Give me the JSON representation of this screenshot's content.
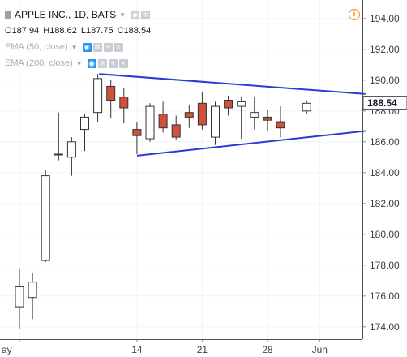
{
  "header": {
    "symbol": "APPLE INC., 1D, BATS",
    "open_label": "O",
    "open": "187.94",
    "high_label": "H",
    "high": "188.62",
    "low_label": "L",
    "low": "187.75",
    "close_label": "C",
    "close": "188.54",
    "indicators": [
      "EMA (50, close)",
      "EMA (200, close)"
    ],
    "info_icon": "i"
  },
  "colors": {
    "up_fill": "#ffffff",
    "down_fill": "#d0503c",
    "candle_border": "#333333",
    "trendline": "#2c3ad6",
    "price_label_bg": "#ffffff",
    "grid": "#f0f3fa"
  },
  "chart_data": {
    "type": "candlestick",
    "ylim": [
      173.2,
      195.2
    ],
    "yticks": [
      "174.00",
      "176.00",
      "178.00",
      "180.00",
      "182.00",
      "184.00",
      "186.00",
      "188.00",
      "190.00",
      "192.00",
      "194.00"
    ],
    "x_labels": [
      {
        "label": "ay",
        "index": 0
      },
      {
        "label": "14",
        "index": 9
      },
      {
        "label": "21",
        "index": 14
      },
      {
        "label": "28",
        "index": 19
      },
      {
        "label": "Jun",
        "index": 23
      }
    ],
    "last_price_label": "188.54",
    "candles": [
      {
        "o": 175.3,
        "h": 177.8,
        "l": 173.9,
        "c": 176.6
      },
      {
        "o": 175.9,
        "h": 177.5,
        "l": 174.5,
        "c": 176.9
      },
      {
        "o": 178.3,
        "h": 184.2,
        "l": 178.2,
        "c": 183.8
      },
      {
        "o": 185.2,
        "h": 187.9,
        "l": 184.8,
        "c": 185.2
      },
      {
        "o": 185.0,
        "h": 186.3,
        "l": 183.8,
        "c": 186.0
      },
      {
        "o": 186.8,
        "h": 187.8,
        "l": 185.4,
        "c": 187.6
      },
      {
        "o": 187.9,
        "h": 190.4,
        "l": 187.3,
        "c": 190.1
      },
      {
        "o": 189.6,
        "h": 190.0,
        "l": 187.5,
        "c": 188.7
      },
      {
        "o": 188.9,
        "h": 189.5,
        "l": 187.2,
        "c": 188.2
      },
      {
        "o": 186.8,
        "h": 187.3,
        "l": 185.2,
        "c": 186.4
      },
      {
        "o": 186.2,
        "h": 188.5,
        "l": 186.0,
        "c": 188.3
      },
      {
        "o": 187.8,
        "h": 188.6,
        "l": 186.6,
        "c": 186.9
      },
      {
        "o": 187.1,
        "h": 187.7,
        "l": 186.1,
        "c": 186.3
      },
      {
        "o": 187.9,
        "h": 188.4,
        "l": 186.9,
        "c": 187.6
      },
      {
        "o": 188.5,
        "h": 189.2,
        "l": 186.8,
        "c": 187.1
      },
      {
        "o": 186.3,
        "h": 188.6,
        "l": 185.8,
        "c": 188.3
      },
      {
        "o": 188.7,
        "h": 189.0,
        "l": 187.7,
        "c": 188.2
      },
      {
        "o": 188.3,
        "h": 188.9,
        "l": 186.2,
        "c": 188.6
      },
      {
        "o": 187.6,
        "h": 188.9,
        "l": 186.8,
        "c": 187.9
      },
      {
        "o": 187.6,
        "h": 188.1,
        "l": 186.7,
        "c": 187.4
      },
      {
        "o": 187.3,
        "h": 188.3,
        "l": 186.3,
        "c": 186.9
      },
      {
        "o": 188.0,
        "h": 188.7,
        "l": 187.8,
        "c": 188.5
      }
    ],
    "candle_positions": [
      0,
      1,
      2,
      3,
      4,
      5,
      6,
      7,
      8,
      9,
      10,
      11,
      12,
      13,
      14,
      15,
      16,
      17,
      18,
      19,
      20,
      22
    ],
    "trendlines": [
      {
        "x1": 6.1,
        "y1": 190.4,
        "x2": 26.5,
        "y2": 189.1
      },
      {
        "x1": 9.0,
        "y1": 185.1,
        "x2": 26.5,
        "y2": 186.7
      }
    ]
  }
}
